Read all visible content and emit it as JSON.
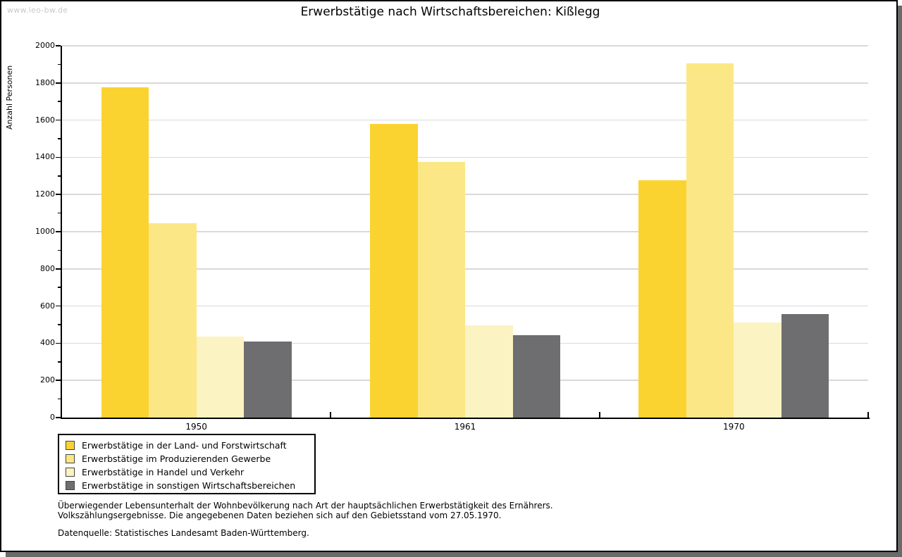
{
  "page": {
    "watermark": "www.leo-bw.de",
    "title": "Erwerbstätige nach Wirtschaftsbereichen: Kißlegg"
  },
  "chart_data": {
    "type": "bar",
    "title": "Erwerbstätige nach Wirtschaftsbereichen: Kißlegg",
    "xlabel": "",
    "ylabel": "Anzahl Personen",
    "ylim": [
      0,
      2000
    ],
    "ytick_major_step": 200,
    "ytick_minor_step": 100,
    "grid": true,
    "legend_position": "bottom-left",
    "categories": [
      "1950",
      "1961",
      "1970"
    ],
    "series": [
      {
        "name": "Erwerbstätige in der Land- und Forstwirtschaft",
        "color": "#FBD331",
        "values": [
          1775,
          1580,
          1275
        ]
      },
      {
        "name": "Erwerbstätige im Produzierenden Gewerbe",
        "color": "#FCE786",
        "values": [
          1045,
          1375,
          1905
        ]
      },
      {
        "name": "Erwerbstätige in Handel und Verkehr",
        "color": "#FCF3C2",
        "values": [
          435,
          495,
          510
        ]
      },
      {
        "name": "Erwerbstätige in sonstigen Wirtschaftsbereichen",
        "color": "#6E6E70",
        "values": [
          410,
          445,
          555
        ]
      }
    ]
  },
  "footnotes": {
    "line1": "Überwiegender Lebensunterhalt der Wohnbevölkerung nach Art der hauptsächlichen Erwerbstätigkeit des Ernährers.",
    "line2": "Volkszählungsergebnisse. Die angegebenen Daten beziehen sich auf den Gebietsstand vom 27.05.1970.",
    "source": "Datenquelle: Statistisches Landesamt Baden-Württemberg."
  }
}
